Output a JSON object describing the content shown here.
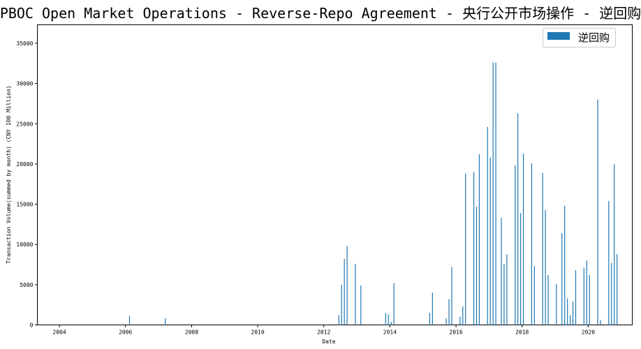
{
  "chart_data": {
    "type": "bar",
    "title": "PBOC Open Market Operations - Reverse-Repo Agreement - 央行公开市场操作 - 逆回购",
    "xlabel": "Date",
    "ylabel": "Transaction Volume(summed by month) (CNY 100 Million)",
    "xlim": [
      "2003-05-01",
      "2021-05-01"
    ],
    "ylim": [
      0,
      37300
    ],
    "x_ticks": [
      "2004",
      "2006",
      "2008",
      "2010",
      "2012",
      "2014",
      "2016",
      "2018",
      "2020"
    ],
    "y_ticks": [
      0,
      5000,
      10000,
      15000,
      20000,
      25000,
      30000,
      35000
    ],
    "grid": false,
    "legend_position": "top-right",
    "series": [
      {
        "name": "逆回购",
        "color": "#1f77b4",
        "points": [
          [
            "2006-02",
            1150
          ],
          [
            "2007-03",
            850
          ],
          [
            "2012-06",
            1200
          ],
          [
            "2012-07",
            5000
          ],
          [
            "2012-08",
            8200
          ],
          [
            "2012-09",
            9800
          ],
          [
            "2012-12",
            7600
          ],
          [
            "2013-02",
            4900
          ],
          [
            "2013-07",
            100
          ],
          [
            "2013-11",
            1500
          ],
          [
            "2013-12",
            1300
          ],
          [
            "2014-01",
            400
          ],
          [
            "2014-02",
            5200
          ],
          [
            "2015-03",
            1500
          ],
          [
            "2015-04",
            4000
          ],
          [
            "2015-09",
            800
          ],
          [
            "2015-10",
            3200
          ],
          [
            "2015-11",
            7200
          ],
          [
            "2016-02",
            1000
          ],
          [
            "2016-03",
            2300
          ],
          [
            "2016-04",
            18800
          ],
          [
            "2016-07",
            19000
          ],
          [
            "2016-08",
            14700
          ],
          [
            "2016-09",
            21200
          ],
          [
            "2016-12",
            24600
          ],
          [
            "2017-01",
            20800
          ],
          [
            "2017-02",
            32600
          ],
          [
            "2017-03",
            32600
          ],
          [
            "2017-05",
            13300
          ],
          [
            "2017-06",
            7600
          ],
          [
            "2017-07",
            8800
          ],
          [
            "2017-10",
            19800
          ],
          [
            "2017-11",
            26300
          ],
          [
            "2017-12",
            13900
          ],
          [
            "2018-01",
            21300
          ],
          [
            "2018-04",
            20100
          ],
          [
            "2018-05",
            7300
          ],
          [
            "2018-08",
            18900
          ],
          [
            "2018-09",
            14300
          ],
          [
            "2018-10",
            6200
          ],
          [
            "2019-01",
            5100
          ],
          [
            "2019-03",
            11400
          ],
          [
            "2019-04",
            14800
          ],
          [
            "2019-05",
            3300
          ],
          [
            "2019-06",
            1200
          ],
          [
            "2019-07",
            2900
          ],
          [
            "2019-08",
            6800
          ],
          [
            "2019-11",
            7100
          ],
          [
            "2019-12",
            8000
          ],
          [
            "2020-01",
            6200
          ],
          [
            "2020-04",
            28000
          ],
          [
            "2020-05",
            600
          ],
          [
            "2020-08",
            15400
          ],
          [
            "2020-09",
            7700
          ],
          [
            "2020-10",
            20000
          ],
          [
            "2020-11",
            8800
          ]
        ]
      }
    ]
  }
}
